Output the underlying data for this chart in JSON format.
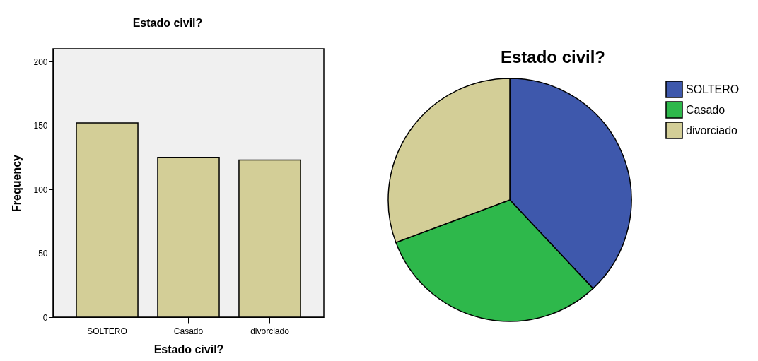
{
  "chart_data": [
    {
      "type": "bar",
      "title": "Estado civil?",
      "xlabel": "Estado civil?",
      "ylabel": "Frequency",
      "categories": [
        "SOLTERO",
        "Casado",
        "divorciado"
      ],
      "values": [
        152,
        125,
        123
      ],
      "color": "#d3ce97",
      "ylim": [
        0,
        210
      ],
      "yticks": [
        0,
        50,
        100,
        150,
        200
      ]
    },
    {
      "type": "pie",
      "title": "Estado civil?",
      "categories": [
        "SOLTERO",
        "Casado",
        "divorciado"
      ],
      "values": [
        38,
        31.3,
        30.7
      ],
      "colors": [
        "#3e58ac",
        "#2eb84b",
        "#d3ce97"
      ],
      "legend": "top right"
    }
  ]
}
